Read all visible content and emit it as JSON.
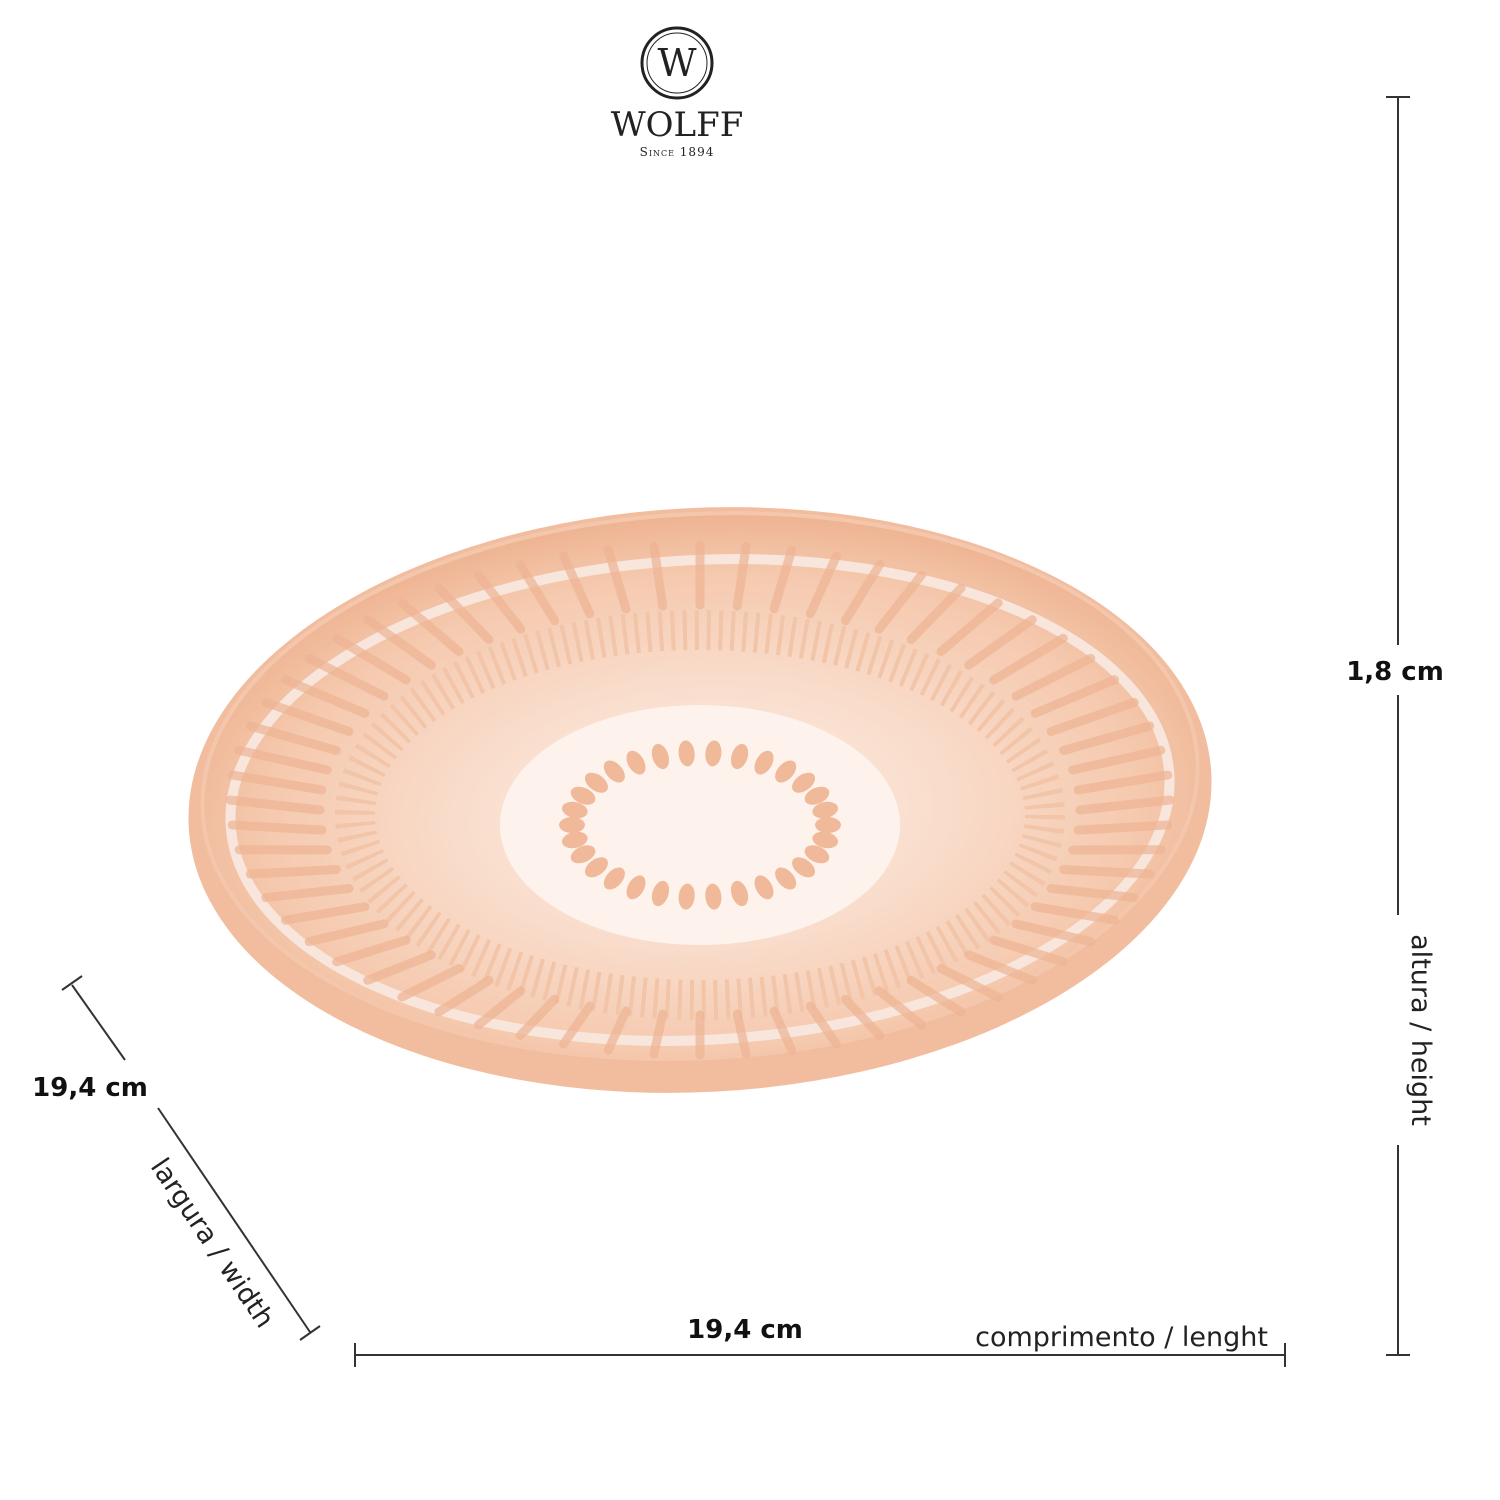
{
  "logo": {
    "mark": "W",
    "brand": "WOLFF",
    "since": "Since 1894"
  },
  "dimensions": {
    "height": {
      "value": "1,8 cm",
      "label": "altura / height"
    },
    "width": {
      "value": "19,4 cm",
      "label": "largura / width"
    },
    "length": {
      "value": "19,4 cm",
      "label": "comprimento / lenght"
    }
  }
}
